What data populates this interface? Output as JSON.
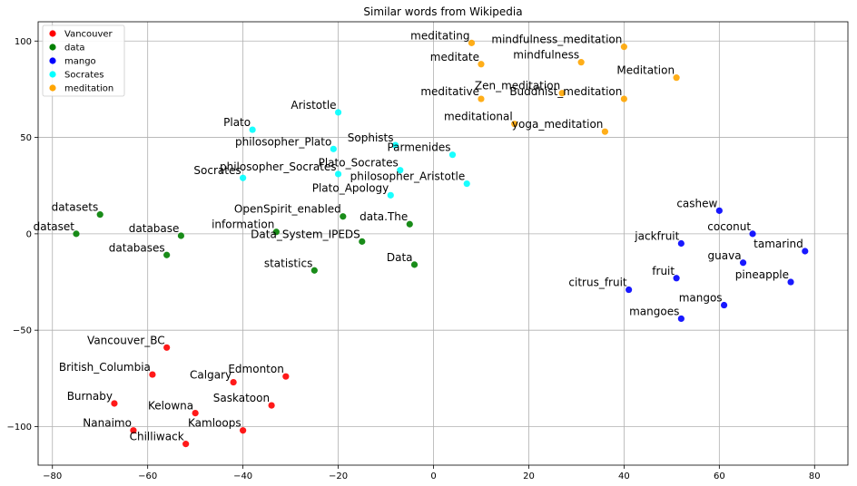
{
  "chart_data": {
    "type": "scatter",
    "title": "Similar words from Wikipedia",
    "xlabel": "",
    "ylabel": "",
    "xlim": [
      -83,
      87
    ],
    "ylim": [
      -120,
      110
    ],
    "xticks": [
      -80,
      -60,
      -40,
      -20,
      0,
      20,
      40,
      60,
      80
    ],
    "yticks": [
      -100,
      -50,
      0,
      50,
      100
    ],
    "grid": true,
    "legend_position": "top-left",
    "series": [
      {
        "name": "Vancouver",
        "color": "#ff0000",
        "points": [
          {
            "label": "Vancouver_BC",
            "x": -56,
            "y": -59
          },
          {
            "label": "British_Columbia",
            "x": -59,
            "y": -73
          },
          {
            "label": "Calgary",
            "x": -42,
            "y": -77
          },
          {
            "label": "Edmonton",
            "x": -31,
            "y": -74
          },
          {
            "label": "Burnaby",
            "x": -67,
            "y": -88
          },
          {
            "label": "Kelowna",
            "x": -50,
            "y": -93
          },
          {
            "label": "Saskatoon",
            "x": -34,
            "y": -89
          },
          {
            "label": "Nanaimo",
            "x": -63,
            "y": -102
          },
          {
            "label": "Kamloops",
            "x": -40,
            "y": -102
          },
          {
            "label": "Chilliwack",
            "x": -52,
            "y": -109
          }
        ]
      },
      {
        "name": "data",
        "color": "#008000",
        "points": [
          {
            "label": "datasets",
            "x": -70,
            "y": 10
          },
          {
            "label": "dataset",
            "x": -75,
            "y": 0
          },
          {
            "label": "database",
            "x": -53,
            "y": -1
          },
          {
            "label": "databases",
            "x": -56,
            "y": -11
          },
          {
            "label": "information",
            "x": -33,
            "y": 1
          },
          {
            "label": "OpenSpirit_enabled",
            "x": -19,
            "y": 9
          },
          {
            "label": "Data_System_IPEDS",
            "x": -15,
            "y": -4
          },
          {
            "label": "statistics",
            "x": -25,
            "y": -19
          },
          {
            "label": "data.The",
            "x": -5,
            "y": 5
          },
          {
            "label": "Data",
            "x": -4,
            "y": -16
          }
        ]
      },
      {
        "name": "mango",
        "color": "#0000ff",
        "points": [
          {
            "label": "cashew",
            "x": 60,
            "y": 12
          },
          {
            "label": "coconut",
            "x": 67,
            "y": 0
          },
          {
            "label": "tamarind",
            "x": 78,
            "y": -9
          },
          {
            "label": "jackfruit",
            "x": 52,
            "y": -5
          },
          {
            "label": "guava",
            "x": 65,
            "y": -15
          },
          {
            "label": "fruit",
            "x": 51,
            "y": -23
          },
          {
            "label": "pineapple",
            "x": 75,
            "y": -25
          },
          {
            "label": "citrus_fruit",
            "x": 41,
            "y": -29
          },
          {
            "label": "mangos",
            "x": 61,
            "y": -37
          },
          {
            "label": "mangoes",
            "x": 52,
            "y": -44
          }
        ]
      },
      {
        "name": "Socrates",
        "color": "#00ffff",
        "points": [
          {
            "label": "Aristotle",
            "x": -20,
            "y": 63
          },
          {
            "label": "Plato",
            "x": -38,
            "y": 54
          },
          {
            "label": "philosopher_Plato",
            "x": -21,
            "y": 44
          },
          {
            "label": "Sophists",
            "x": -8,
            "y": 46
          },
          {
            "label": "Parmenides",
            "x": 4,
            "y": 41
          },
          {
            "label": "Socrates",
            "x": -40,
            "y": 29
          },
          {
            "label": "philosopher_Socrates",
            "x": -20,
            "y": 31
          },
          {
            "label": "Plato_Socrates",
            "x": -7,
            "y": 33
          },
          {
            "label": "philosopher_Aristotle",
            "x": 7,
            "y": 26
          },
          {
            "label": "Plato_Apology",
            "x": -9,
            "y": 20
          }
        ]
      },
      {
        "name": "meditation",
        "color": "#ffa500",
        "points": [
          {
            "label": "meditating",
            "x": 8,
            "y": 99
          },
          {
            "label": "meditate",
            "x": 10,
            "y": 88
          },
          {
            "label": "mindfulness_meditation",
            "x": 40,
            "y": 97
          },
          {
            "label": "mindfulness",
            "x": 31,
            "y": 89
          },
          {
            "label": "Meditation",
            "x": 51,
            "y": 81
          },
          {
            "label": "meditative",
            "x": 10,
            "y": 70
          },
          {
            "label": "Zen_meditation",
            "x": 27,
            "y": 73
          },
          {
            "label": "Buddhist_meditation",
            "x": 40,
            "y": 70
          },
          {
            "label": "meditational",
            "x": 17,
            "y": 57
          },
          {
            "label": "yoga_meditation",
            "x": 36,
            "y": 53
          }
        ]
      }
    ]
  }
}
